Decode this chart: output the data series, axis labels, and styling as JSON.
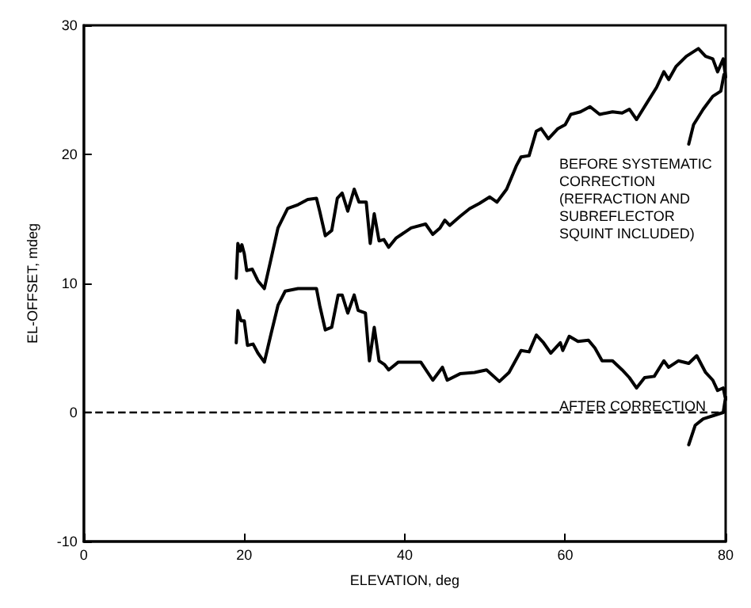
{
  "chart_data": {
    "type": "line",
    "xlabel": "ELEVATION, deg",
    "ylabel": "EL-OFFSET, mdeg",
    "xlim": [
      0,
      80
    ],
    "xticks": [
      0,
      20,
      40,
      60,
      80
    ],
    "ylim": [
      -10,
      30
    ],
    "yticks": [
      -10,
      0,
      10,
      20,
      30
    ],
    "grid": false,
    "marker": "none",
    "line_style": "solid",
    "annotations": [
      "BEFORE SYSTEMATIC\nCORRECTION\n(REFRACTION AND\nSUBREFLECTOR\nSQUINT INCLUDED)",
      "AFTER CORRECTION"
    ],
    "ref_lines": [
      {
        "axis": "y",
        "value": 0,
        "line_style": "dashed",
        "color": "#000000"
      }
    ],
    "series": [
      {
        "color": "#000000",
        "x": [
          19.0,
          19.2,
          19.5,
          19.7,
          20.0,
          20.3,
          21.0,
          21.7,
          22.5,
          23.3,
          24.2,
          25.4,
          26.7,
          27.9,
          29.0,
          29.4,
          30.1,
          30.9,
          31.6,
          32.2,
          32.9,
          33.7,
          34.3,
          35.2,
          35.7,
          36.2,
          36.8,
          37.4,
          38.0,
          38.9,
          40.8,
          42.6,
          43.5,
          44.4,
          45.0,
          45.6,
          46.9,
          48.1,
          49.3,
          50.6,
          51.5,
          52.7,
          53.9,
          54.5,
          55.5,
          56.4,
          57.0,
          57.9,
          59.1,
          60.0,
          60.7,
          61.9,
          63.1,
          64.3,
          65.9,
          67.1,
          68.0,
          68.9,
          70.1,
          71.4,
          72.3,
          72.9,
          73.8,
          75.1,
          76.6,
          77.5,
          78.4,
          79.0,
          79.7,
          80.0,
          79.8,
          79.4,
          78.4,
          77.2,
          76.0,
          75.4
        ],
        "values": [
          10.4,
          13.1,
          12.5,
          13.0,
          12.3,
          11.0,
          11.1,
          10.2,
          9.6,
          11.8,
          14.3,
          15.8,
          16.1,
          16.5,
          16.6,
          15.6,
          13.7,
          14.1,
          16.6,
          17.0,
          15.6,
          17.3,
          16.3,
          16.3,
          13.1,
          15.4,
          13.3,
          13.4,
          12.8,
          13.5,
          14.3,
          14.6,
          13.8,
          14.3,
          14.9,
          14.5,
          15.2,
          15.8,
          16.2,
          16.7,
          16.3,
          17.3,
          19.1,
          19.8,
          19.9,
          21.8,
          22.0,
          21.2,
          22.0,
          22.3,
          23.1,
          23.3,
          23.7,
          23.1,
          23.3,
          23.2,
          23.5,
          22.7,
          23.9,
          25.2,
          26.4,
          25.8,
          26.8,
          27.6,
          28.2,
          27.6,
          27.4,
          26.4,
          27.4,
          26.0,
          26.2,
          24.9,
          24.5,
          23.5,
          22.3,
          20.8
        ]
      },
      {
        "color": "#000000",
        "x": [
          19.0,
          19.2,
          19.6,
          20.0,
          20.4,
          21.1,
          21.7,
          22.5,
          23.3,
          24.2,
          25.1,
          26.7,
          29.0,
          29.4,
          30.1,
          30.9,
          31.7,
          32.2,
          32.9,
          33.7,
          34.2,
          35.1,
          35.6,
          36.2,
          36.8,
          37.5,
          38.0,
          39.2,
          42.0,
          43.5,
          44.7,
          45.3,
          46.9,
          48.7,
          50.2,
          51.8,
          53.0,
          54.5,
          55.5,
          56.4,
          57.3,
          58.2,
          59.4,
          59.7,
          60.5,
          61.6,
          62.9,
          63.7,
          64.6,
          65.9,
          67.1,
          68.0,
          68.9,
          69.9,
          71.1,
          72.3,
          72.9,
          74.1,
          75.4,
          76.4,
          77.5,
          78.4,
          79.0,
          79.7,
          80.0,
          80.0,
          79.7,
          78.7,
          77.2,
          76.2,
          75.4
        ],
        "values": [
          5.4,
          7.9,
          7.1,
          7.1,
          5.2,
          5.3,
          4.6,
          3.9,
          6.0,
          8.3,
          9.4,
          9.6,
          9.6,
          8.3,
          6.4,
          6.6,
          9.1,
          9.1,
          7.7,
          9.1,
          7.9,
          7.7,
          4.0,
          6.6,
          4.0,
          3.7,
          3.3,
          3.9,
          3.9,
          2.5,
          3.5,
          2.5,
          3.0,
          3.1,
          3.3,
          2.4,
          3.1,
          4.8,
          4.7,
          6.0,
          5.4,
          4.6,
          5.4,
          4.8,
          5.9,
          5.5,
          5.6,
          5.0,
          4.0,
          4.0,
          3.3,
          2.7,
          1.9,
          2.7,
          2.8,
          4.0,
          3.5,
          4.0,
          3.8,
          4.4,
          3.1,
          2.5,
          1.7,
          1.9,
          1.0,
          1.2,
          0.0,
          -0.2,
          -0.5,
          -1.0,
          -2.5
        ]
      }
    ]
  }
}
